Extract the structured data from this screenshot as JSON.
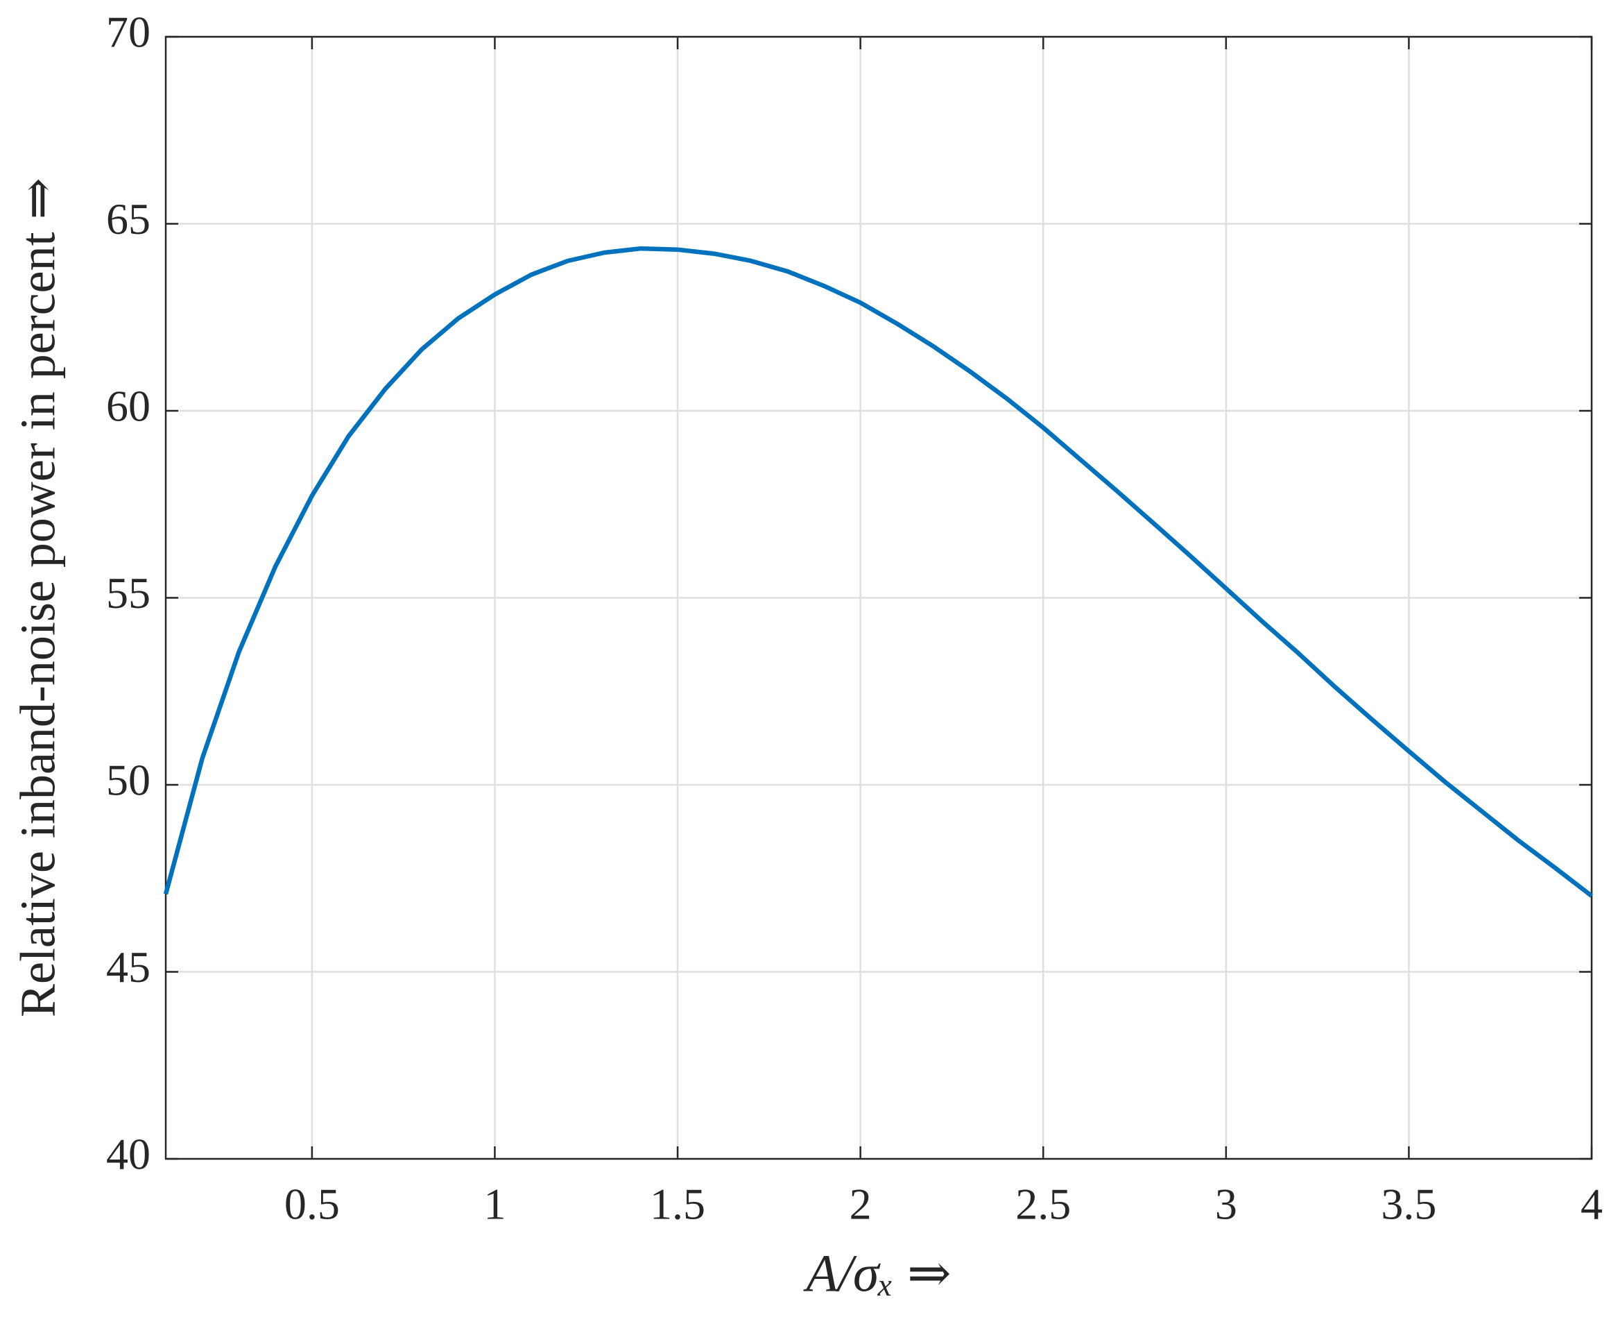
{
  "chart_data": {
    "type": "line",
    "x_label": "A/σₓ ⇒",
    "y_label": "Relative inband-noise power in percent ⇒",
    "x": [
      0.1,
      0.2,
      0.3,
      0.4,
      0.5,
      0.6,
      0.7,
      0.8,
      0.9,
      1.0,
      1.1,
      1.2,
      1.3,
      1.4,
      1.5,
      1.6,
      1.7,
      1.8,
      1.9,
      2.0,
      2.1,
      2.2,
      2.3,
      2.4,
      2.5,
      2.6,
      2.7,
      2.8,
      2.9,
      3.0,
      3.1,
      3.2,
      3.3,
      3.4,
      3.5,
      3.6,
      3.7,
      3.8,
      3.9,
      4.0
    ],
    "values": [
      47.08,
      50.71,
      53.55,
      55.84,
      57.73,
      59.32,
      60.58,
      61.64,
      62.47,
      63.11,
      63.64,
      64.01,
      64.23,
      64.34,
      64.31,
      64.2,
      64.01,
      63.73,
      63.34,
      62.89,
      62.33,
      61.72,
      61.05,
      60.33,
      59.55,
      58.71,
      57.87,
      57.01,
      56.14,
      55.25,
      54.36,
      53.5,
      52.6,
      51.74,
      50.9,
      50.07,
      49.29,
      48.51,
      47.78,
      47.03
    ],
    "color": "#0072bd",
    "xlim": [
      0.1,
      4
    ],
    "xticks": [
      0.5,
      1,
      1.5,
      2,
      2.5,
      3,
      3.5,
      4
    ],
    "ylim": [
      40,
      70
    ],
    "yticks": [
      40,
      45,
      50,
      55,
      60,
      65,
      70
    ],
    "grid": true
  }
}
